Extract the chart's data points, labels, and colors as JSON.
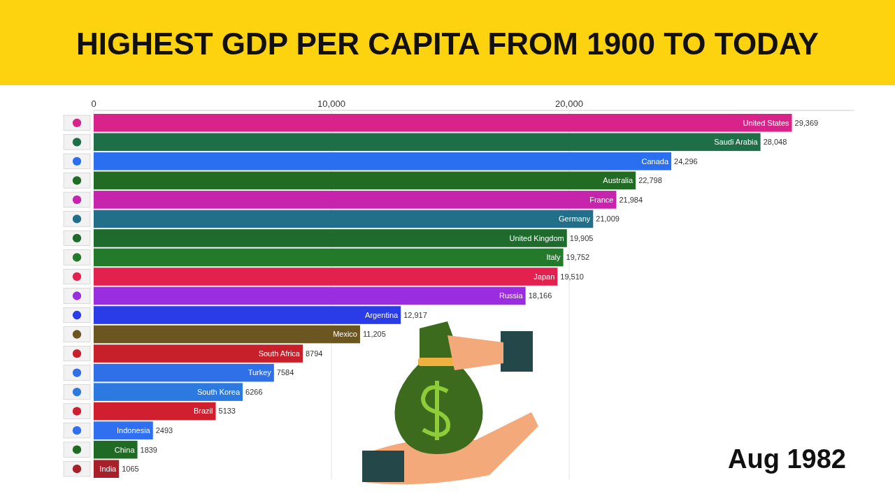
{
  "chart_data": {
    "type": "bar",
    "orientation": "horizontal",
    "title": "HIGHEST GDP PER CAPITA FROM 1900 TO TODAY",
    "categories": [
      "United States",
      "Saudi Arabia",
      "Canada",
      "Australia",
      "France",
      "Germany",
      "United Kingdom",
      "Italy",
      "Japan",
      "Russia",
      "Argentina",
      "Mexico",
      "South Africa",
      "Turkey",
      "South Korea",
      "Brazil",
      "Indonesia",
      "China",
      "India"
    ],
    "values": [
      29369,
      28048,
      24296,
      22798,
      21984,
      21009,
      19905,
      19752,
      19510,
      18166,
      12917,
      11205,
      8794,
      7584,
      6266,
      5133,
      2493,
      1839,
      1065
    ],
    "value_labels": [
      "29,369",
      "28,048",
      "24,296",
      "22,798",
      "21,984",
      "21,009",
      "19,905",
      "19,752",
      "19,510",
      "18,166",
      "12,917",
      "11,205",
      "8794",
      "7584",
      "6266",
      "5133",
      "2493",
      "1839",
      "1065"
    ],
    "colors": [
      "#d8248a",
      "#1e6e47",
      "#2a6ff0",
      "#216b25",
      "#c624ad",
      "#226f8a",
      "#1f6b2e",
      "#237a2a",
      "#e2214f",
      "#9a2de0",
      "#2a3be8",
      "#6b5520",
      "#c8202a",
      "#2f6fe8",
      "#2c7ae0",
      "#d02030",
      "#2f6ff0",
      "#1f6b25",
      "#a8202a"
    ],
    "xlim": [
      0,
      32000
    ],
    "xticks": [
      {
        "value": 0,
        "label": "0"
      },
      {
        "value": 10000,
        "label": "10,000"
      },
      {
        "value": 20000,
        "label": "20,000"
      }
    ],
    "grid": "x",
    "annotations": [
      "Aug 1982"
    ]
  }
}
